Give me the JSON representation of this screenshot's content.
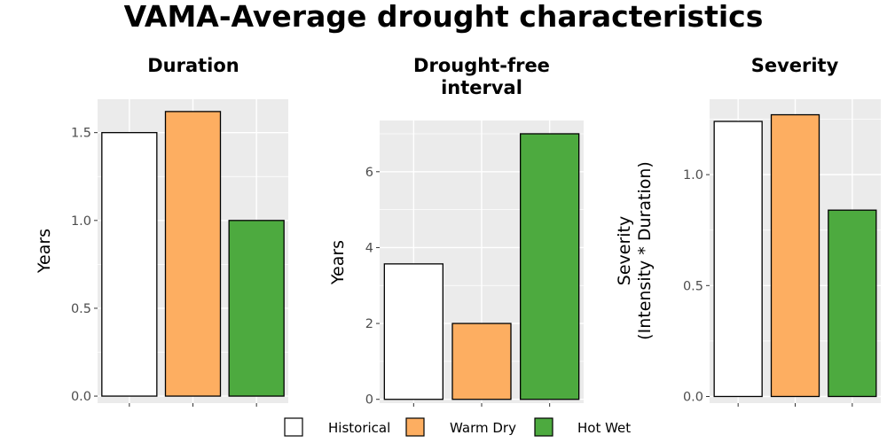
{
  "title": "VAMA-Average drought characteristics",
  "chart_data": [
    {
      "type": "bar",
      "title": "Duration",
      "ylabel": "Years",
      "categories": [
        "Historical",
        "Warm Dry",
        "Hot Wet"
      ],
      "values": [
        1.5,
        1.62,
        1.0
      ],
      "ylim": [
        -0.04,
        1.69
      ],
      "yticks": [
        0.0,
        0.5,
        1.0,
        1.5
      ],
      "ytick_labels": [
        "0.0",
        "0.5",
        "1.0",
        "1.5"
      ],
      "grid": true
    },
    {
      "type": "bar",
      "title": "Drought-free interval",
      "ylabel": "Years",
      "categories": [
        "Historical",
        "Warm Dry",
        "Hot Wet"
      ],
      "values": [
        3.57,
        2.0,
        7.0
      ],
      "ylim": [
        -0.1,
        7.35
      ],
      "yticks": [
        0,
        2,
        4,
        6
      ],
      "ytick_labels": [
        "0",
        "2",
        "4",
        "6"
      ],
      "grid": true
    },
    {
      "type": "bar",
      "title": "Severity",
      "ylabel": "Severity (Intensity * Duration)",
      "categories": [
        "Historical",
        "Warm Dry",
        "Hot Wet"
      ],
      "values": [
        1.24,
        1.27,
        0.84
      ],
      "ylim": [
        -0.03,
        1.34
      ],
      "yticks": [
        0.0,
        0.5,
        1.0
      ],
      "ytick_labels": [
        "0.0",
        "0.5",
        "1.0"
      ],
      "grid": true
    }
  ],
  "legend": {
    "placement": "bottom",
    "items": [
      {
        "label": "Historical",
        "color": "#ffffff"
      },
      {
        "label": "Warm Dry",
        "color": "#fdae61"
      },
      {
        "label": "Hot Wet",
        "color": "#4daa3f"
      }
    ]
  }
}
